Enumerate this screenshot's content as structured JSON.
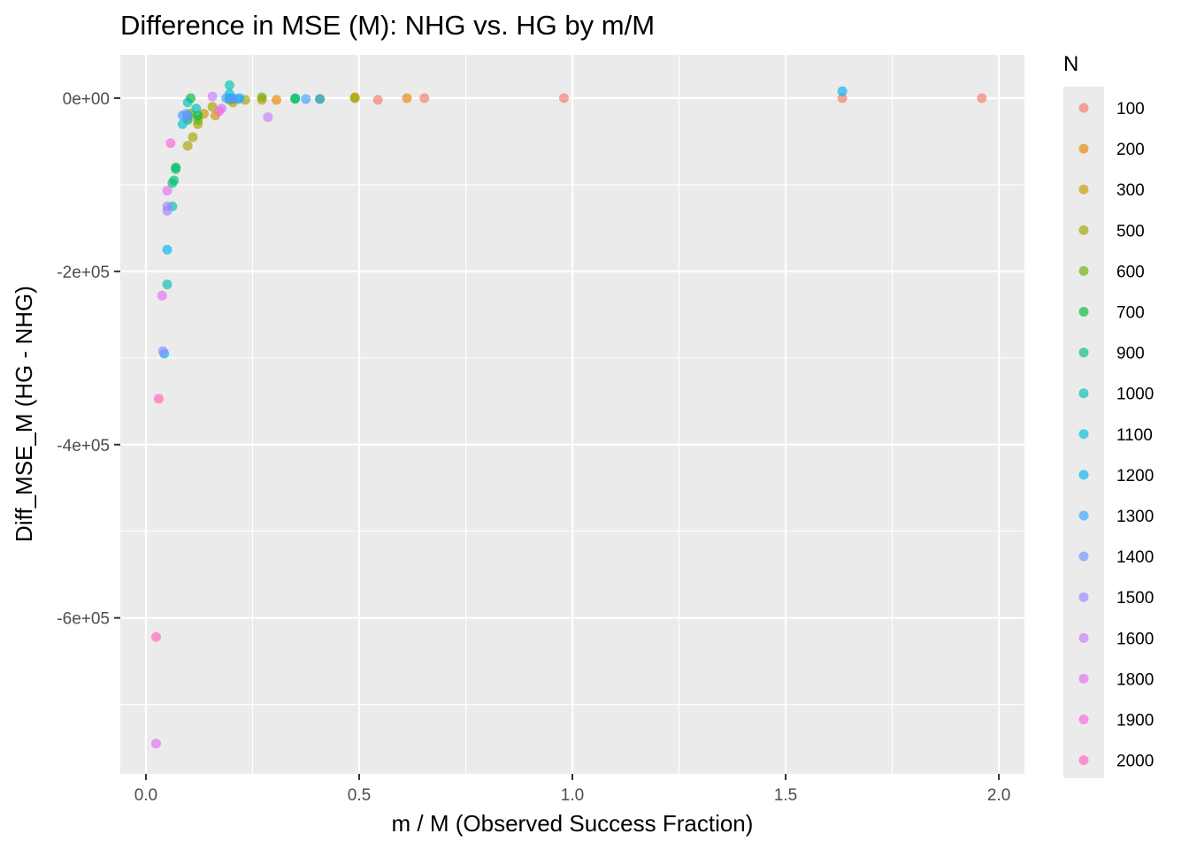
{
  "chart_data": {
    "type": "scatter",
    "title": "Difference in MSE (M): NHG vs. HG by m/M",
    "xlabel": "m / M (Observed Success Fraction)",
    "ylabel": "Diff_MSE_M (HG - NHG)",
    "xlim": [
      -0.06,
      2.06
    ],
    "ylim": [
      -780000,
      50000
    ],
    "x_ticks": [
      {
        "value": 0,
        "label": "0.0"
      },
      {
        "value": 0.5,
        "label": "0.5"
      },
      {
        "value": 1.0,
        "label": "1.0"
      },
      {
        "value": 1.5,
        "label": "1.5"
      },
      {
        "value": 2.0,
        "label": "2.0"
      }
    ],
    "y_ticks": [
      {
        "value": 0,
        "label": "0e+00"
      },
      {
        "value": -200000,
        "label": "-2e+05"
      },
      {
        "value": -400000,
        "label": "-4e+05"
      },
      {
        "value": -600000,
        "label": "-6e+05"
      }
    ],
    "grid": true,
    "legend": {
      "title": "N",
      "position": "right"
    },
    "series": [
      {
        "name": "100",
        "color": "#F8766D",
        "points": [
          [
            0.653,
            0
          ],
          [
            0.98,
            0
          ],
          [
            1.96,
            0
          ],
          [
            0.544,
            -2000
          ],
          [
            1.633,
            0
          ]
        ]
      },
      {
        "name": "200",
        "color": "#E58700",
        "points": [
          [
            0.612,
            0
          ],
          [
            0.408,
            -1000
          ],
          [
            0.306,
            -2000
          ]
        ]
      },
      {
        "name": "300",
        "color": "#C99800",
        "points": [
          [
            0.49,
            1000
          ],
          [
            0.272,
            -2000
          ],
          [
            0.163,
            -20000
          ],
          [
            0.136,
            -18000
          ],
          [
            0.204,
            -5000
          ]
        ]
      },
      {
        "name": "500",
        "color": "#A3A500",
        "points": [
          [
            0.49,
            0
          ],
          [
            0.233,
            -2000
          ],
          [
            0.122,
            -30000
          ],
          [
            0.098,
            -55000
          ],
          [
            0.11,
            -45000
          ],
          [
            0.156,
            -10000
          ],
          [
            0.196,
            -2000
          ]
        ]
      },
      {
        "name": "600",
        "color": "#6BB100",
        "points": [
          [
            0.272,
            1000
          ],
          [
            0.204,
            -1000
          ],
          [
            0.122,
            -25000
          ],
          [
            0.105,
            -18000
          ]
        ]
      },
      {
        "name": "700",
        "color": "#00BA38",
        "points": [
          [
            0.35,
            0
          ],
          [
            0.122,
            -20000
          ],
          [
            0.098,
            -25000
          ],
          [
            0.07,
            -80000
          ],
          [
            0.105,
            0
          ]
        ]
      },
      {
        "name": "900",
        "color": "#00BF7D",
        "points": [
          [
            0.35,
            -1000
          ],
          [
            0.098,
            -20000
          ],
          [
            0.066,
            -95000
          ],
          [
            0.07,
            -82000
          ],
          [
            0.062,
            -98000
          ]
        ]
      },
      {
        "name": "1000",
        "color": "#00C0AF",
        "points": [
          [
            0.196,
            15000
          ],
          [
            0.098,
            -5000
          ],
          [
            0.118,
            -12000
          ],
          [
            0.062,
            -125000
          ],
          [
            0.05,
            -215000
          ]
        ]
      },
      {
        "name": "1100",
        "color": "#00BCD8",
        "points": [
          [
            0.196,
            5000
          ],
          [
            0.217,
            -1000
          ],
          [
            0.086,
            -30000
          ],
          [
            0.196,
            0
          ]
        ]
      },
      {
        "name": "1200",
        "color": "#00B0F6",
        "points": [
          [
            1.633,
            8000
          ],
          [
            0.204,
            0
          ],
          [
            0.408,
            -1000
          ],
          [
            0.05,
            -175000
          ],
          [
            0.043,
            -295000
          ]
        ]
      },
      {
        "name": "1300",
        "color": "#35A2FF",
        "points": [
          [
            0.375,
            -1000
          ],
          [
            0.188,
            0
          ],
          [
            0.22,
            0
          ],
          [
            0.086,
            -20000
          ]
        ]
      },
      {
        "name": "1400",
        "color": "#6F93FE",
        "points": [
          [
            0.098,
            -22000
          ],
          [
            0.094,
            -18000
          ],
          [
            0.204,
            -1000
          ]
        ]
      },
      {
        "name": "1500",
        "color": "#9E84FF",
        "points": [
          [
            0.05,
            -125000
          ],
          [
            0.05,
            -130000
          ],
          [
            0.04,
            -292000
          ]
        ]
      },
      {
        "name": "1600",
        "color": "#C77CFF",
        "points": [
          [
            0.156,
            2000
          ],
          [
            0.286,
            -22000
          ],
          [
            0.178,
            -12000
          ]
        ]
      },
      {
        "name": "1800",
        "color": "#E76BF3",
        "points": [
          [
            0.05,
            -107000
          ],
          [
            0.038,
            -228000
          ],
          [
            0.024,
            -745000
          ]
        ]
      },
      {
        "name": "1900",
        "color": "#FA62DB",
        "points": [
          [
            0.058,
            -52000
          ],
          [
            0.172,
            -15000
          ]
        ]
      },
      {
        "name": "2000",
        "color": "#FF62BC",
        "points": [
          [
            0.03,
            -347000
          ],
          [
            0.024,
            -622000
          ]
        ]
      }
    ]
  }
}
